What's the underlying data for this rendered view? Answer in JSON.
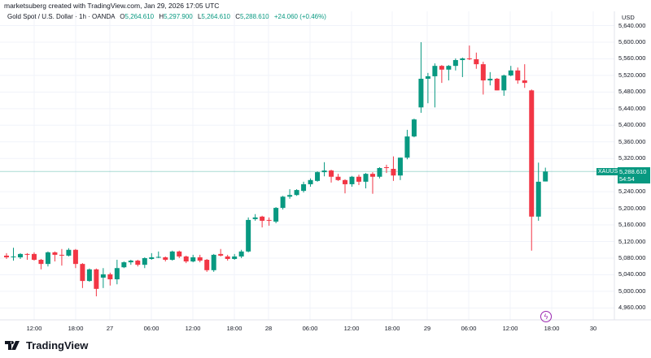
{
  "header": {
    "credit": "marketsuberg created with TradingView.com, Jan 29, 2026 17:05 UTC"
  },
  "legend": {
    "symbol_desc": "Gold Spot / U.S. Dollar · 1h · OANDA",
    "open_label": "O",
    "open": "5,264.610",
    "high_label": "H",
    "high": "5,297.900",
    "low_label": "L",
    "low": "5,264.610",
    "close_label": "C",
    "close": "5,288.610",
    "change": "+24.060 (+0.46%)"
  },
  "price_axis": {
    "currency": "USD",
    "ticks": [
      "5,640.000",
      "5,600.000",
      "5,560.000",
      "5,520.000",
      "5,480.000",
      "5,440.000",
      "5,400.000",
      "5,360.000",
      "5,320.000",
      "5,240.000",
      "5,200.000",
      "5,160.000",
      "5,120.000",
      "5,080.000",
      "5,040.000",
      "5,000.000",
      "4,960.000"
    ],
    "symbol_tag": "XAUUSD",
    "last_price": "5,288.610",
    "countdown": "54:54"
  },
  "time_axis": {
    "ticks": [
      "12:00",
      "18:00",
      "27",
      "06:00",
      "12:00",
      "18:00",
      "28",
      "06:00",
      "12:00",
      "18:00",
      "29",
      "06:00",
      "12:00",
      "18:00",
      "30"
    ]
  },
  "colors": {
    "up": "#089981",
    "down": "#f23645",
    "grid": "#f0f3fa",
    "last_price_line": "#089981"
  },
  "icons": {
    "event": "lightning-icon",
    "logo": "tradingview-logo"
  },
  "footer": {
    "logo_text": "TradingView"
  },
  "chart_data": {
    "type": "candlestick",
    "timeframe": "1h",
    "ohlc": [
      [
        5086,
        5092,
        5078,
        5082
      ],
      [
        5083,
        5105,
        5074,
        5084
      ],
      [
        5082,
        5092,
        5078,
        5090
      ],
      [
        5090,
        5092,
        5076,
        5088
      ],
      [
        5090,
        5094,
        5074,
        5076
      ],
      [
        5076,
        5078,
        5053,
        5066
      ],
      [
        5066,
        5096,
        5060,
        5094
      ],
      [
        5094,
        5096,
        5072,
        5088
      ],
      [
        5088,
        5102,
        5062,
        5087
      ],
      [
        5086,
        5104,
        5084,
        5100
      ],
      [
        5100,
        5102,
        5056,
        5066
      ],
      [
        5066,
        5068,
        5008,
        5025
      ],
      [
        5025,
        5055,
        5023,
        5053
      ],
      [
        5053,
        5055,
        4988,
        5006
      ],
      [
        5033,
        5056,
        5008,
        5041
      ],
      [
        5041,
        5045,
        5014,
        5029
      ],
      [
        5029,
        5076,
        5017,
        5056
      ],
      [
        5058,
        5072,
        5056,
        5070
      ],
      [
        5070,
        5076,
        5064,
        5074
      ],
      [
        5074,
        5076,
        5060,
        5064
      ],
      [
        5064,
        5082,
        5056,
        5080
      ],
      [
        5078,
        5092,
        5076,
        5082
      ],
      [
        5082,
        5096,
        5080,
        5083
      ],
      [
        5082,
        5084,
        5072,
        5076
      ],
      [
        5076,
        5098,
        5074,
        5096
      ],
      [
        5096,
        5098,
        5080,
        5084
      ],
      [
        5084,
        5086,
        5068,
        5072
      ],
      [
        5072,
        5088,
        5070,
        5082
      ],
      [
        5082,
        5088,
        5070,
        5074
      ],
      [
        5076,
        5078,
        5047,
        5051
      ],
      [
        5051,
        5090,
        5047,
        5088
      ],
      [
        5090,
        5102,
        5084,
        5086
      ],
      [
        5084,
        5088,
        5074,
        5078
      ],
      [
        5078,
        5090,
        5076,
        5084
      ],
      [
        5084,
        5100,
        5080,
        5096
      ],
      [
        5096,
        5178,
        5094,
        5172
      ],
      [
        5174,
        5186,
        5170,
        5178
      ],
      [
        5180,
        5182,
        5154,
        5170
      ],
      [
        5172,
        5178,
        5158,
        5171
      ],
      [
        5168,
        5203,
        5164,
        5201
      ],
      [
        5201,
        5230,
        5197,
        5228
      ],
      [
        5228,
        5246,
        5223,
        5232
      ],
      [
        5232,
        5246,
        5230,
        5244
      ],
      [
        5242,
        5264,
        5238,
        5258
      ],
      [
        5258,
        5272,
        5252,
        5268
      ],
      [
        5266,
        5289,
        5264,
        5287
      ],
      [
        5287,
        5311,
        5277,
        5291
      ],
      [
        5291,
        5293,
        5262,
        5276
      ],
      [
        5276,
        5283,
        5266,
        5268
      ],
      [
        5268,
        5270,
        5236,
        5258
      ],
      [
        5258,
        5278,
        5252,
        5276
      ],
      [
        5276,
        5281,
        5256,
        5264
      ],
      [
        5264,
        5285,
        5248,
        5283
      ],
      [
        5283,
        5287,
        5235,
        5276
      ],
      [
        5276,
        5299,
        5272,
        5297
      ],
      [
        5299,
        5305,
        5285,
        5297
      ],
      [
        5295,
        5325,
        5266,
        5279
      ],
      [
        5279,
        5322,
        5268,
        5322
      ],
      [
        5322,
        5389,
        5318,
        5373
      ],
      [
        5373,
        5416,
        5371,
        5414
      ],
      [
        5443,
        5600,
        5430,
        5512
      ],
      [
        5512,
        5526,
        5453,
        5518
      ],
      [
        5518,
        5549,
        5443,
        5543
      ],
      [
        5543,
        5545,
        5502,
        5534
      ],
      [
        5534,
        5545,
        5508,
        5543
      ],
      [
        5543,
        5561,
        5532,
        5557
      ],
      [
        5557,
        5563,
        5516,
        5561
      ],
      [
        5561,
        5592,
        5557,
        5559
      ],
      [
        5559,
        5575,
        5536,
        5547
      ],
      [
        5547,
        5553,
        5474,
        5508
      ],
      [
        5508,
        5528,
        5496,
        5512
      ],
      [
        5512,
        5514,
        5484,
        5484
      ],
      [
        5484,
        5522,
        5471,
        5520
      ],
      [
        5520,
        5543,
        5518,
        5532
      ],
      [
        5532,
        5539,
        5500,
        5508
      ],
      [
        5508,
        5547,
        5490,
        5502
      ],
      [
        5484,
        5486,
        5098,
        5180
      ],
      [
        5180,
        5310,
        5170,
        5264
      ],
      [
        5264.61,
        5297.9,
        5264.61,
        5288.61
      ]
    ],
    "last_price": 5288.61,
    "ylim": [
      4940,
      5660
    ],
    "grid": true
  }
}
